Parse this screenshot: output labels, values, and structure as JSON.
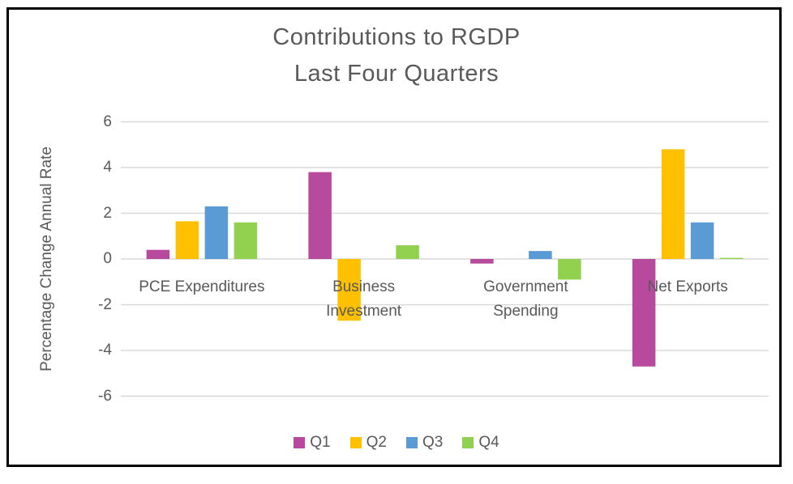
{
  "window": {
    "background": "#ffffff",
    "border_color": "#000000"
  },
  "chart_data": {
    "type": "bar",
    "title": "Contributions to RGDP Last Four Quarters",
    "title_lines": [
      "Contributions to RGDP",
      "Last Four Quarters"
    ],
    "ylabel": "Percentage Change Annual Rate",
    "xlabel": "",
    "categories": [
      "PCE Expenditures",
      "Business Investment",
      "Government Spending",
      "Net Exports"
    ],
    "category_display_lines": [
      "PCE Expenditures",
      "Business\nInvestment",
      "Government\nSpending",
      "Net Exports"
    ],
    "series": [
      {
        "name": "Q1",
        "color": "#b84a9e",
        "values": [
          0.4,
          3.8,
          -0.2,
          -4.7
        ]
      },
      {
        "name": "Q2",
        "color": "#ffc000",
        "values": [
          1.65,
          -2.7,
          0,
          4.8
        ]
      },
      {
        "name": "Q3",
        "color": "#5b9bd5",
        "values": [
          2.3,
          0,
          0.35,
          1.6
        ]
      },
      {
        "name": "Q4",
        "color": "#92d050",
        "values": [
          1.6,
          0.6,
          -0.9,
          0.05
        ]
      }
    ],
    "yticks": [
      6,
      4,
      2,
      0,
      -2,
      -4,
      -6
    ],
    "ylim": [
      -6,
      6
    ],
    "grid": true,
    "legend_position": "bottom",
    "colors": {
      "text": "#595959",
      "gridline": "#d9d9d9"
    }
  }
}
